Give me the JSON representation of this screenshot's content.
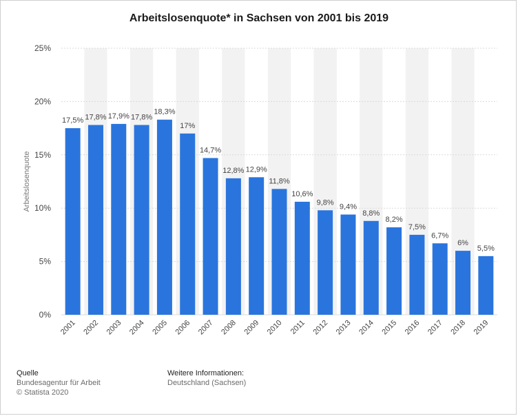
{
  "title": "Arbeitslosenquote* in Sachsen von 2001 bis 2019",
  "footer": {
    "source_heading": "Quelle",
    "source_name": "Bundesagentur für Arbeit",
    "copyright": "© Statista 2020",
    "info_heading": "Weitere Informationen:",
    "info_text": "Deutschland (Sachsen)"
  },
  "colors": {
    "bar": "#2a75dd",
    "band": "#f2f2f2",
    "grid": "#d9d9d9",
    "text": "#444444"
  },
  "chart_data": {
    "type": "bar",
    "title": "Arbeitslosenquote* in Sachsen von 2001 bis 2019",
    "xlabel": "",
    "ylabel": "Arbeitslosenquote",
    "ylim": [
      0,
      25
    ],
    "yticks": [
      0,
      5,
      10,
      15,
      20,
      25
    ],
    "ytick_labels": [
      "0%",
      "5%",
      "10%",
      "15%",
      "20%",
      "25%"
    ],
    "grid": true,
    "categories": [
      "2001",
      "2002",
      "2003",
      "2004",
      "2005",
      "2006",
      "2007",
      "2008",
      "2009",
      "2010",
      "2011",
      "2012",
      "2013",
      "2014",
      "2015",
      "2016",
      "2017",
      "2018",
      "2019"
    ],
    "values": [
      17.5,
      17.8,
      17.9,
      17.8,
      18.3,
      17,
      14.7,
      12.8,
      12.9,
      11.8,
      10.6,
      9.8,
      9.4,
      8.8,
      8.2,
      7.5,
      6.7,
      6,
      5.5
    ],
    "value_labels": [
      "17,5%",
      "17,8%",
      "17,9%",
      "17,8%",
      "18,3%",
      "17%",
      "14,7%",
      "12,8%",
      "12,9%",
      "11,8%",
      "10,6%",
      "9,8%",
      "9,4%",
      "8,8%",
      "8,2%",
      "7,5%",
      "6,7%",
      "6%",
      "5,5%"
    ]
  }
}
